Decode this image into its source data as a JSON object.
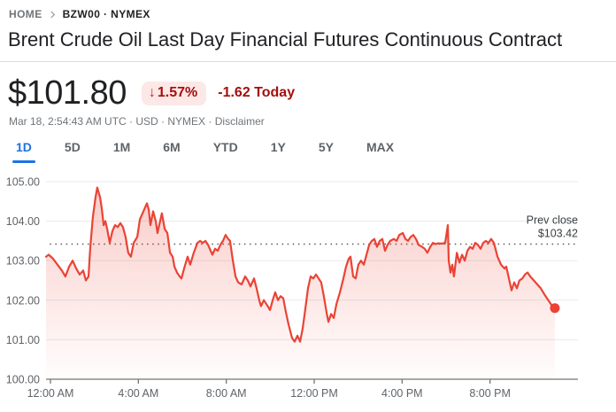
{
  "breadcrumb": {
    "home": "HOME",
    "symbol": "BZW00 · NYMEX"
  },
  "title": "Brent Crude Oil Last Day Financial Futures Continuous Contract",
  "quote": {
    "price": "$101.80",
    "change_arrow": "↓",
    "change_percent": "1.57%",
    "change_text": "-1.62 Today",
    "meta_prefix": "Mar 18, 2:54:43 AM UTC · USD · NYMEX · ",
    "disclaimer_label": "Disclaimer"
  },
  "tabs": {
    "items": [
      {
        "label": "1D",
        "active": true
      },
      {
        "label": "5D",
        "active": false
      },
      {
        "label": "1M",
        "active": false
      },
      {
        "label": "6M",
        "active": false
      },
      {
        "label": "YTD",
        "active": false
      },
      {
        "label": "1Y",
        "active": false
      },
      {
        "label": "5Y",
        "active": false
      },
      {
        "label": "MAX",
        "active": false
      }
    ]
  },
  "colors": {
    "line_red": "#ea4335",
    "down_text_red": "#a50e0e",
    "badge_bg": "#fce8e6",
    "active_tab_blue": "#1a73e8",
    "gridline": "#e8eaed",
    "axis": "#757575",
    "tick_label": "#5f6368",
    "prev_close_dots": "#5f6368",
    "annotation": "#3c4043"
  },
  "chart_data": {
    "type": "line",
    "ylabel": "",
    "xlabel": "",
    "ylim": [
      100,
      105
    ],
    "xlim_hours": [
      -0.2,
      24
    ],
    "grid": true,
    "y_ticks": [
      {
        "value": 105,
        "label": "105.00"
      },
      {
        "value": 104,
        "label": "104.00"
      },
      {
        "value": 103,
        "label": "103.00"
      },
      {
        "value": 102,
        "label": "102.00"
      },
      {
        "value": 101,
        "label": "101.00"
      },
      {
        "value": 100,
        "label": "100.00"
      }
    ],
    "x_ticks": [
      {
        "hour": 0,
        "label": "12:00 AM"
      },
      {
        "hour": 4,
        "label": "4:00 AM"
      },
      {
        "hour": 8,
        "label": "8:00 AM"
      },
      {
        "hour": 12,
        "label": "12:00 PM"
      },
      {
        "hour": 16,
        "label": "4:00 PM"
      },
      {
        "hour": 20,
        "label": "8:00 PM"
      }
    ],
    "prev_close": {
      "label": "Prev close",
      "value_label": "$103.42",
      "value": 103.42
    },
    "line_color": "#ea4335",
    "last_point": {
      "hour": 22.95,
      "value": 101.8
    },
    "series": [
      {
        "name": "BZW00 price",
        "points": [
          [
            -0.2,
            103.1
          ],
          [
            -0.08,
            103.15
          ],
          [
            0.12,
            103.05
          ],
          [
            0.32,
            102.9
          ],
          [
            0.52,
            102.75
          ],
          [
            0.68,
            102.6
          ],
          [
            0.85,
            102.85
          ],
          [
            1.01,
            103.0
          ],
          [
            1.17,
            102.8
          ],
          [
            1.33,
            102.65
          ],
          [
            1.49,
            102.75
          ],
          [
            1.61,
            102.5
          ],
          [
            1.73,
            102.6
          ],
          [
            1.81,
            103.3
          ],
          [
            1.93,
            104.1
          ],
          [
            2.05,
            104.6
          ],
          [
            2.13,
            104.85
          ],
          [
            2.26,
            104.6
          ],
          [
            2.34,
            104.3
          ],
          [
            2.42,
            103.9
          ],
          [
            2.5,
            104.0
          ],
          [
            2.58,
            103.8
          ],
          [
            2.7,
            103.45
          ],
          [
            2.82,
            103.75
          ],
          [
            2.94,
            103.9
          ],
          [
            3.06,
            103.85
          ],
          [
            3.18,
            103.95
          ],
          [
            3.3,
            103.85
          ],
          [
            3.42,
            103.6
          ],
          [
            3.54,
            103.2
          ],
          [
            3.66,
            103.1
          ],
          [
            3.79,
            103.45
          ],
          [
            3.95,
            103.6
          ],
          [
            4.07,
            104.05
          ],
          [
            4.19,
            104.2
          ],
          [
            4.31,
            104.35
          ],
          [
            4.39,
            104.45
          ],
          [
            4.47,
            104.3
          ],
          [
            4.55,
            103.9
          ],
          [
            4.67,
            104.25
          ],
          [
            4.79,
            104.0
          ],
          [
            4.87,
            103.7
          ],
          [
            4.95,
            103.9
          ],
          [
            5.07,
            104.2
          ],
          [
            5.2,
            103.8
          ],
          [
            5.32,
            103.7
          ],
          [
            5.44,
            103.2
          ],
          [
            5.56,
            103.1
          ],
          [
            5.64,
            102.85
          ],
          [
            5.76,
            102.7
          ],
          [
            5.88,
            102.6
          ],
          [
            5.96,
            102.55
          ],
          [
            6.08,
            102.8
          ],
          [
            6.24,
            103.1
          ],
          [
            6.36,
            102.9
          ],
          [
            6.52,
            103.2
          ],
          [
            6.69,
            103.45
          ],
          [
            6.81,
            103.5
          ],
          [
            6.93,
            103.45
          ],
          [
            7.05,
            103.5
          ],
          [
            7.17,
            103.4
          ],
          [
            7.29,
            103.25
          ],
          [
            7.37,
            103.15
          ],
          [
            7.49,
            103.3
          ],
          [
            7.61,
            103.25
          ],
          [
            7.73,
            103.4
          ],
          [
            7.85,
            103.5
          ],
          [
            7.97,
            103.65
          ],
          [
            8.09,
            103.55
          ],
          [
            8.17,
            103.5
          ],
          [
            8.3,
            103.0
          ],
          [
            8.42,
            102.6
          ],
          [
            8.54,
            102.45
          ],
          [
            8.7,
            102.4
          ],
          [
            8.86,
            102.6
          ],
          [
            8.98,
            102.5
          ],
          [
            9.1,
            102.35
          ],
          [
            9.26,
            102.55
          ],
          [
            9.38,
            102.3
          ],
          [
            9.5,
            102.0
          ],
          [
            9.58,
            101.85
          ],
          [
            9.71,
            102.0
          ],
          [
            9.83,
            101.9
          ],
          [
            9.99,
            101.75
          ],
          [
            10.11,
            102.0
          ],
          [
            10.23,
            102.2
          ],
          [
            10.35,
            102.0
          ],
          [
            10.47,
            102.1
          ],
          [
            10.59,
            102.05
          ],
          [
            10.71,
            101.7
          ],
          [
            10.83,
            101.4
          ],
          [
            10.99,
            101.05
          ],
          [
            11.11,
            100.95
          ],
          [
            11.24,
            101.1
          ],
          [
            11.36,
            100.95
          ],
          [
            11.48,
            101.3
          ],
          [
            11.6,
            101.8
          ],
          [
            11.72,
            102.3
          ],
          [
            11.84,
            102.6
          ],
          [
            11.96,
            102.55
          ],
          [
            12.08,
            102.65
          ],
          [
            12.2,
            102.55
          ],
          [
            12.32,
            102.45
          ],
          [
            12.44,
            102.1
          ],
          [
            12.56,
            101.7
          ],
          [
            12.65,
            101.45
          ],
          [
            12.77,
            101.65
          ],
          [
            12.89,
            101.55
          ],
          [
            13.01,
            101.9
          ],
          [
            13.17,
            102.2
          ],
          [
            13.33,
            102.55
          ],
          [
            13.45,
            102.85
          ],
          [
            13.57,
            103.05
          ],
          [
            13.65,
            103.1
          ],
          [
            13.77,
            102.6
          ],
          [
            13.89,
            102.55
          ],
          [
            14.01,
            102.9
          ],
          [
            14.13,
            103.0
          ],
          [
            14.26,
            102.9
          ],
          [
            14.38,
            103.15
          ],
          [
            14.5,
            103.4
          ],
          [
            14.62,
            103.5
          ],
          [
            14.74,
            103.55
          ],
          [
            14.86,
            103.35
          ],
          [
            14.98,
            103.5
          ],
          [
            15.1,
            103.55
          ],
          [
            15.22,
            103.25
          ],
          [
            15.34,
            103.4
          ],
          [
            15.46,
            103.5
          ],
          [
            15.62,
            103.55
          ],
          [
            15.75,
            103.5
          ],
          [
            15.87,
            103.65
          ],
          [
            16.03,
            103.7
          ],
          [
            16.15,
            103.55
          ],
          [
            16.27,
            103.5
          ],
          [
            16.39,
            103.6
          ],
          [
            16.51,
            103.65
          ],
          [
            16.63,
            103.55
          ],
          [
            16.75,
            103.4
          ],
          [
            16.91,
            103.35
          ],
          [
            17.03,
            103.3
          ],
          [
            17.15,
            103.2
          ],
          [
            17.28,
            103.35
          ],
          [
            17.4,
            103.45
          ],
          [
            17.52,
            103.42
          ],
          [
            17.64,
            103.44
          ],
          [
            17.8,
            103.43
          ],
          [
            17.96,
            103.45
          ],
          [
            18.08,
            103.9
          ],
          [
            18.12,
            103.0
          ],
          [
            18.2,
            102.7
          ],
          [
            18.28,
            102.9
          ],
          [
            18.36,
            102.6
          ],
          [
            18.49,
            103.2
          ],
          [
            18.61,
            102.95
          ],
          [
            18.73,
            103.15
          ],
          [
            18.85,
            103.0
          ],
          [
            18.97,
            103.25
          ],
          [
            19.09,
            103.35
          ],
          [
            19.21,
            103.3
          ],
          [
            19.33,
            103.45
          ],
          [
            19.45,
            103.4
          ],
          [
            19.57,
            103.3
          ],
          [
            19.69,
            103.45
          ],
          [
            19.81,
            103.5
          ],
          [
            19.93,
            103.45
          ],
          [
            20.05,
            103.55
          ],
          [
            20.18,
            103.45
          ],
          [
            20.34,
            103.1
          ],
          [
            20.5,
            102.9
          ],
          [
            20.66,
            102.8
          ],
          [
            20.74,
            102.85
          ],
          [
            20.86,
            102.55
          ],
          [
            20.98,
            102.25
          ],
          [
            21.1,
            102.45
          ],
          [
            21.22,
            102.3
          ],
          [
            21.34,
            102.5
          ],
          [
            21.47,
            102.55
          ],
          [
            21.59,
            102.65
          ],
          [
            21.71,
            102.7
          ],
          [
            21.83,
            102.6
          ],
          [
            21.99,
            102.5
          ],
          [
            22.15,
            102.4
          ],
          [
            22.31,
            102.3
          ],
          [
            22.47,
            102.15
          ],
          [
            22.59,
            102.05
          ],
          [
            22.71,
            101.95
          ],
          [
            22.83,
            101.85
          ],
          [
            22.95,
            101.8
          ]
        ]
      }
    ]
  }
}
